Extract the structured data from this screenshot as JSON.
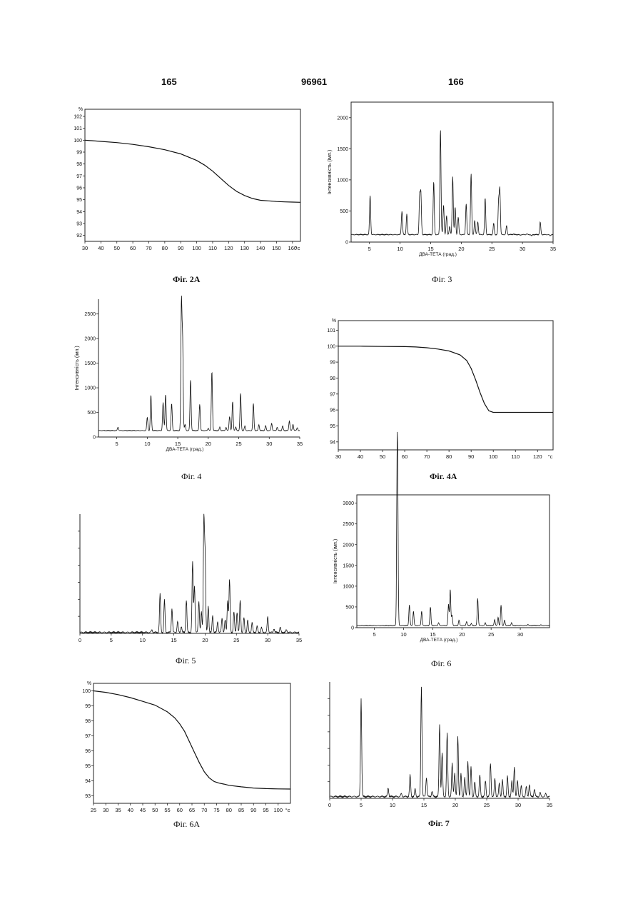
{
  "header": {
    "left": "165",
    "center": "96961",
    "right": "166"
  },
  "chart_data": [
    {
      "id": "fig2a",
      "type": "line",
      "caption": "Фіг. 2А",
      "title": "",
      "xlabel": "",
      "ylabel": "",
      "y_unit_label": "%",
      "x_unit_label": "°c",
      "xlim": [
        30,
        165
      ],
      "ylim": [
        91.5,
        102.6
      ],
      "xticks": [
        30,
        40,
        50,
        60,
        70,
        80,
        90,
        100,
        110,
        120,
        130,
        140,
        150,
        160
      ],
      "yticks": [
        92,
        93,
        94,
        95,
        96,
        97,
        98,
        99,
        100,
        101,
        102
      ],
      "series": [
        {
          "x": [
            30,
            40,
            50,
            60,
            70,
            80,
            90,
            100,
            105,
            110,
            115,
            120,
            125,
            130,
            135,
            140,
            145,
            150,
            155,
            160,
            165
          ],
          "values": [
            100,
            99.9,
            99.8,
            99.65,
            99.45,
            99.2,
            98.85,
            98.3,
            97.9,
            97.4,
            96.8,
            96.2,
            95.7,
            95.35,
            95.1,
            94.95,
            94.9,
            94.85,
            94.82,
            94.8,
            94.78
          ]
        }
      ]
    },
    {
      "id": "fig3",
      "type": "line",
      "caption": "Фіг. 3",
      "title": "",
      "xlabel": "ДВА-ТЕТА (град.)",
      "ylabel": "Інтенсивність (імп.)",
      "xlim": [
        2,
        35
      ],
      "ylim": [
        0,
        2250
      ],
      "xticks": [
        5,
        10,
        15,
        20,
        25,
        30,
        35
      ],
      "yticks": [
        0,
        500,
        1000,
        1500,
        2000
      ],
      "baseline": 120,
      "peaks": [
        [
          5.1,
          750
        ],
        [
          10.3,
          500
        ],
        [
          11.1,
          450
        ],
        [
          13.2,
          730
        ],
        [
          13.4,
          780
        ],
        [
          15.5,
          970
        ],
        [
          16.6,
          1820
        ],
        [
          17.1,
          600
        ],
        [
          17.6,
          420
        ],
        [
          18.1,
          250
        ],
        [
          18.6,
          1060
        ],
        [
          19.0,
          560
        ],
        [
          19.5,
          400
        ],
        [
          20.8,
          620
        ],
        [
          21.6,
          1100
        ],
        [
          22.2,
          350
        ],
        [
          22.7,
          330
        ],
        [
          23.9,
          710
        ],
        [
          25.3,
          300
        ],
        [
          26.1,
          650
        ],
        [
          26.3,
          840
        ],
        [
          27.4,
          260
        ],
        [
          28.5,
          130
        ],
        [
          29.6,
          110
        ],
        [
          30.7,
          130
        ],
        [
          31.5,
          100
        ],
        [
          32.9,
          320
        ],
        [
          33.8,
          120
        ],
        [
          34.5,
          100
        ]
      ]
    },
    {
      "id": "fig4",
      "type": "line",
      "caption": "Фіг. 4",
      "title": "",
      "xlabel": "ДВА-ТЕТА (град.)",
      "ylabel": "Інтенсивність (імп.)",
      "xlim": [
        2,
        35
      ],
      "ylim": [
        0,
        2800
      ],
      "xticks": [
        5,
        10,
        15,
        20,
        25,
        30,
        35
      ],
      "yticks": [
        0,
        500,
        1000,
        1500,
        2000,
        2500
      ],
      "baseline": 130,
      "peaks": [
        [
          5.2,
          200
        ],
        [
          10.0,
          400
        ],
        [
          10.6,
          850
        ],
        [
          12.6,
          700
        ],
        [
          13.0,
          870
        ],
        [
          14.0,
          680
        ],
        [
          15.6,
          2700
        ],
        [
          15.8,
          1900
        ],
        [
          16.2,
          250
        ],
        [
          17.1,
          1170
        ],
        [
          18.6,
          670
        ],
        [
          20.0,
          180
        ],
        [
          20.6,
          1340
        ],
        [
          21.9,
          200
        ],
        [
          22.9,
          200
        ],
        [
          23.5,
          420
        ],
        [
          24.0,
          720
        ],
        [
          24.5,
          200
        ],
        [
          25.3,
          890
        ],
        [
          26.0,
          220
        ],
        [
          27.4,
          680
        ],
        [
          28.3,
          250
        ],
        [
          29.4,
          230
        ],
        [
          30.4,
          280
        ],
        [
          31.3,
          200
        ],
        [
          32.2,
          220
        ],
        [
          33.3,
          330
        ],
        [
          33.9,
          260
        ],
        [
          34.6,
          190
        ]
      ]
    },
    {
      "id": "fig4a",
      "type": "line",
      "caption": "Фіг. 4А",
      "title": "",
      "xlabel": "",
      "ylabel": "",
      "y_unit_label": "%",
      "x_unit_label": "°c",
      "xlim": [
        30,
        127
      ],
      "ylim": [
        93.5,
        101.6
      ],
      "xticks": [
        30,
        40,
        50,
        60,
        70,
        80,
        90,
        100,
        110,
        120
      ],
      "yticks": [
        94,
        95,
        96,
        97,
        98,
        99,
        100,
        101
      ],
      "series": [
        {
          "x": [
            30,
            40,
            50,
            60,
            65,
            70,
            75,
            80,
            85,
            88,
            90,
            92,
            94,
            96,
            98,
            100,
            105,
            110,
            115,
            120,
            127
          ],
          "values": [
            100,
            100,
            99.98,
            99.97,
            99.95,
            99.9,
            99.82,
            99.7,
            99.45,
            99.1,
            98.6,
            97.9,
            97.1,
            96.4,
            95.95,
            95.85,
            95.85,
            95.85,
            95.85,
            95.85,
            95.85
          ]
        }
      ]
    },
    {
      "id": "fig5",
      "type": "line",
      "caption": "Фіг. 5",
      "title": "",
      "xlabel": "",
      "ylabel": "",
      "xlim": [
        0,
        35
      ],
      "ylim": [
        0,
        1000
      ],
      "xticks": [
        0,
        5,
        10,
        15,
        20,
        25,
        30,
        35
      ],
      "baseline": 8,
      "peaks": [
        [
          11.5,
          30
        ],
        [
          12.8,
          330
        ],
        [
          13.5,
          280
        ],
        [
          14.7,
          210
        ],
        [
          15.6,
          100
        ],
        [
          16.2,
          60
        ],
        [
          17.0,
          280
        ],
        [
          18.0,
          600
        ],
        [
          18.3,
          400
        ],
        [
          19.0,
          270
        ],
        [
          19.4,
          180
        ],
        [
          19.8,
          950
        ],
        [
          20.0,
          640
        ],
        [
          20.5,
          230
        ],
        [
          21.2,
          150
        ],
        [
          22.0,
          100
        ],
        [
          22.7,
          130
        ],
        [
          23.2,
          110
        ],
        [
          23.6,
          280
        ],
        [
          23.9,
          450
        ],
        [
          24.6,
          180
        ],
        [
          25.1,
          180
        ],
        [
          25.6,
          280
        ],
        [
          26.2,
          130
        ],
        [
          26.8,
          110
        ],
        [
          27.5,
          90
        ],
        [
          28.3,
          60
        ],
        [
          29.0,
          50
        ],
        [
          30.0,
          140
        ],
        [
          31.0,
          40
        ],
        [
          32.0,
          50
        ],
        [
          33.0,
          30
        ]
      ]
    },
    {
      "id": "fig6",
      "type": "line",
      "caption": "Фіг. 6",
      "title": "",
      "xlabel": "ДВА-ТЕТА (град.)",
      "ylabel": "Інтенсивність (імп.)",
      "xlim": [
        2,
        35
      ],
      "ylim": [
        0,
        3200
      ],
      "xticks": [
        5,
        10,
        15,
        20,
        25,
        30
      ],
      "yticks": [
        0,
        500,
        1000,
        1500,
        2000,
        2500,
        3000
      ],
      "baseline": 50,
      "peaks": [
        [
          8.9,
          3150
        ],
        [
          9.0,
          2400
        ],
        [
          11.0,
          550
        ],
        [
          11.7,
          400
        ],
        [
          13.1,
          400
        ],
        [
          14.6,
          500
        ],
        [
          16.0,
          120
        ],
        [
          17.7,
          560
        ],
        [
          18.0,
          930
        ],
        [
          18.3,
          300
        ],
        [
          19.5,
          180
        ],
        [
          20.8,
          150
        ],
        [
          21.6,
          100
        ],
        [
          22.7,
          710
        ],
        [
          24.0,
          120
        ],
        [
          25.6,
          200
        ],
        [
          26.2,
          250
        ],
        [
          26.7,
          540
        ],
        [
          27.3,
          180
        ],
        [
          28.5,
          120
        ],
        [
          30.0,
          60
        ],
        [
          31.3,
          80
        ],
        [
          32.5,
          60
        ],
        [
          33.5,
          70
        ]
      ]
    },
    {
      "id": "fig6a",
      "type": "line",
      "caption": "Фіг. 6А",
      "title": "",
      "xlabel": "",
      "ylabel": "",
      "y_unit_label": "%",
      "x_unit_label": "°c",
      "xlim": [
        25,
        105
      ],
      "ylim": [
        92.5,
        100.5
      ],
      "xticks": [
        25,
        30,
        35,
        40,
        45,
        50,
        55,
        60,
        65,
        70,
        75,
        80,
        85,
        90,
        95,
        100
      ],
      "yticks": [
        93,
        94,
        95,
        96,
        97,
        98,
        99,
        100
      ],
      "series": [
        {
          "x": [
            25,
            30,
            35,
            40,
            45,
            50,
            55,
            58,
            60,
            62,
            64,
            66,
            68,
            70,
            72,
            74,
            76,
            78,
            80,
            85,
            90,
            95,
            100,
            105
          ],
          "values": [
            100,
            99.9,
            99.75,
            99.55,
            99.3,
            99.05,
            98.6,
            98.2,
            97.8,
            97.3,
            96.6,
            95.9,
            95.2,
            94.6,
            94.2,
            93.95,
            93.85,
            93.78,
            93.7,
            93.6,
            93.52,
            93.48,
            93.46,
            93.45
          ]
        }
      ]
    },
    {
      "id": "fig7",
      "type": "line",
      "caption": "Фіг. 7",
      "title": "",
      "xlabel": "",
      "ylabel": "",
      "xlim": [
        0,
        35
      ],
      "ylim": [
        0,
        1000
      ],
      "xticks": [
        0,
        5,
        10,
        15,
        20,
        25,
        30,
        35
      ],
      "baseline": 15,
      "peaks": [
        [
          5.0,
          860
        ],
        [
          9.3,
          90
        ],
        [
          11.4,
          40
        ],
        [
          12.8,
          200
        ],
        [
          13.6,
          80
        ],
        [
          14.6,
          960
        ],
        [
          15.4,
          180
        ],
        [
          16.3,
          60
        ],
        [
          17.5,
          640
        ],
        [
          17.9,
          390
        ],
        [
          18.7,
          560
        ],
        [
          19.5,
          300
        ],
        [
          19.9,
          220
        ],
        [
          20.4,
          530
        ],
        [
          20.9,
          210
        ],
        [
          21.5,
          180
        ],
        [
          22.0,
          320
        ],
        [
          22.5,
          270
        ],
        [
          23.1,
          140
        ],
        [
          23.9,
          200
        ],
        [
          24.8,
          150
        ],
        [
          25.6,
          300
        ],
        [
          26.3,
          170
        ],
        [
          27.0,
          130
        ],
        [
          27.5,
          160
        ],
        [
          28.3,
          190
        ],
        [
          29.0,
          150
        ],
        [
          29.4,
          270
        ],
        [
          29.9,
          150
        ],
        [
          30.5,
          110
        ],
        [
          31.3,
          100
        ],
        [
          31.8,
          120
        ],
        [
          32.6,
          80
        ],
        [
          33.5,
          50
        ],
        [
          34.4,
          40
        ]
      ]
    }
  ]
}
